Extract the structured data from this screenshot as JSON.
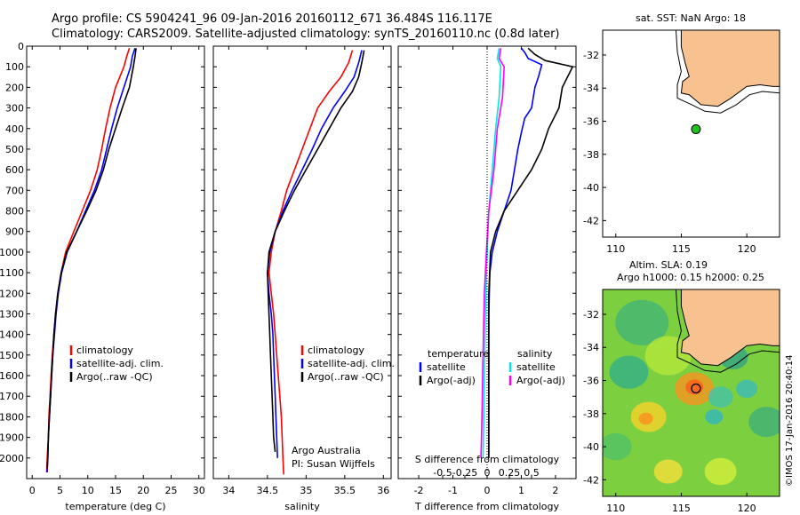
{
  "header": {
    "line1": "Argo profile: CS 5904241_96 09-Jan-2016 20160112_671 36.484S 116.117E",
    "line2": "Climatology: CARS2009. Satellite-adjusted climatology: synTS_20160110.nc (0.8d later)"
  },
  "credit": "©IMOS 17-Jan-2016 20:40:14",
  "colors": {
    "climatology": "#ff0000",
    "satellite": "#0000ff",
    "argo": "#000000",
    "sal_satellite": "#00e5ee",
    "sal_argo": "#ff00ff",
    "land": "#f7c28f"
  },
  "chart_data": [
    {
      "type": "line",
      "id": "temperature",
      "xlabel": "temperature (deg C)",
      "ylim": [
        2100,
        0
      ],
      "xlim": [
        -1,
        31
      ],
      "xticks": [
        0,
        5,
        10,
        15,
        20,
        25,
        30
      ],
      "yticks": [
        0,
        100,
        200,
        300,
        400,
        500,
        600,
        700,
        800,
        900,
        1000,
        1100,
        1200,
        1300,
        1400,
        1500,
        1600,
        1700,
        1800,
        1900,
        2000
      ],
      "legend": [
        "climatology",
        "satellite-adj. clim.",
        "Argo(..raw -QC)"
      ],
      "series": [
        {
          "name": "climatology",
          "color": "#ff0000",
          "points": [
            [
              17.5,
              10
            ],
            [
              17,
              50
            ],
            [
              16.5,
              100
            ],
            [
              15,
              200
            ],
            [
              14,
              300
            ],
            [
              13.2,
              400
            ],
            [
              12.5,
              500
            ],
            [
              11.7,
              600
            ],
            [
              10.5,
              700
            ],
            [
              9,
              800
            ],
            [
              7.5,
              900
            ],
            [
              6,
              1000
            ],
            [
              5.2,
              1100
            ],
            [
              4.6,
              1200
            ],
            [
              4.2,
              1300
            ],
            [
              3.9,
              1400
            ],
            [
              3.6,
              1500
            ],
            [
              3.4,
              1600
            ],
            [
              3.2,
              1700
            ],
            [
              3,
              1800
            ],
            [
              2.9,
              1900
            ],
            [
              2.7,
              2000
            ],
            [
              2.6,
              2070
            ]
          ]
        },
        {
          "name": "satellite-adj. clim.",
          "color": "#0000ff",
          "points": [
            [
              18.5,
              10
            ],
            [
              18,
              50
            ],
            [
              17.7,
              100
            ],
            [
              16.5,
              200
            ],
            [
              15.3,
              300
            ],
            [
              14.3,
              400
            ],
            [
              13.4,
              500
            ],
            [
              12.5,
              600
            ],
            [
              11.2,
              700
            ],
            [
              9.6,
              800
            ],
            [
              8,
              900
            ],
            [
              6.3,
              1000
            ],
            [
              5.3,
              1100
            ],
            [
              4.7,
              1200
            ],
            [
              4.3,
              1300
            ],
            [
              4,
              1400
            ],
            [
              3.7,
              1500
            ],
            [
              3.5,
              1600
            ],
            [
              3.3,
              1700
            ],
            [
              3.1,
              1800
            ],
            [
              2.9,
              1900
            ],
            [
              2.8,
              2000
            ],
            [
              2.7,
              2070
            ]
          ]
        },
        {
          "name": "Argo(..raw -QC)",
          "color": "#000000",
          "points": [
            [
              18.7,
              10
            ],
            [
              18.5,
              50
            ],
            [
              18.2,
              100
            ],
            [
              17.5,
              200
            ],
            [
              16.2,
              300
            ],
            [
              15,
              400
            ],
            [
              13.8,
              500
            ],
            [
              12.8,
              600
            ],
            [
              11.5,
              700
            ],
            [
              9.8,
              800
            ],
            [
              8,
              900
            ],
            [
              6.2,
              1000
            ],
            [
              5.2,
              1100
            ],
            [
              4.6,
              1200
            ],
            [
              4.2,
              1300
            ],
            [
              3.9,
              1400
            ],
            [
              3.7,
              1500
            ],
            [
              3.5,
              1600
            ],
            [
              3.3,
              1700
            ],
            [
              3.1,
              1800
            ],
            [
              2.9,
              1900
            ],
            [
              2.8,
              2000
            ],
            [
              2.7,
              2050
            ]
          ]
        }
      ]
    },
    {
      "type": "line",
      "id": "salinity",
      "xlabel": "salinity",
      "ylim": [
        2100,
        0
      ],
      "xlim": [
        33.8,
        36.1
      ],
      "xticks": [
        34,
        34.5,
        35,
        35.5,
        36
      ],
      "legend": [
        "climatology",
        "satellite-adj. clim.",
        "Argo(..raw -QC)"
      ],
      "annotation": [
        "Argo Australia",
        "PI: Susan Wijffels"
      ],
      "series": [
        {
          "name": "climatology",
          "color": "#ff0000",
          "points": [
            [
              35.6,
              20
            ],
            [
              35.55,
              80
            ],
            [
              35.45,
              150
            ],
            [
              35.3,
              220
            ],
            [
              35.15,
              300
            ],
            [
              35.05,
              400
            ],
            [
              34.95,
              500
            ],
            [
              34.85,
              600
            ],
            [
              34.75,
              700
            ],
            [
              34.68,
              800
            ],
            [
              34.6,
              900
            ],
            [
              34.55,
              1000
            ],
            [
              34.52,
              1100
            ],
            [
              34.55,
              1200
            ],
            [
              34.58,
              1300
            ],
            [
              34.6,
              1400
            ],
            [
              34.62,
              1500
            ],
            [
              34.64,
              1600
            ],
            [
              34.66,
              1700
            ],
            [
              34.68,
              1800
            ],
            [
              34.69,
              1900
            ],
            [
              34.7,
              2000
            ],
            [
              34.71,
              2080
            ]
          ]
        },
        {
          "name": "satellite-adj. clim.",
          "color": "#0000ff",
          "points": [
            [
              35.72,
              20
            ],
            [
              35.68,
              80
            ],
            [
              35.62,
              150
            ],
            [
              35.5,
              220
            ],
            [
              35.35,
              300
            ],
            [
              35.2,
              400
            ],
            [
              35.08,
              500
            ],
            [
              34.95,
              600
            ],
            [
              34.82,
              700
            ],
            [
              34.7,
              800
            ],
            [
              34.6,
              900
            ],
            [
              34.53,
              1000
            ],
            [
              34.5,
              1100
            ],
            [
              34.52,
              1200
            ],
            [
              34.55,
              1300
            ],
            [
              34.57,
              1400
            ],
            [
              34.58,
              1500
            ],
            [
              34.59,
              1600
            ],
            [
              34.6,
              1700
            ],
            [
              34.61,
              1800
            ],
            [
              34.62,
              1900
            ],
            [
              34.63,
              2000
            ]
          ]
        },
        {
          "name": "Argo(..raw -QC)",
          "color": "#000000",
          "points": [
            [
              35.75,
              20
            ],
            [
              35.72,
              80
            ],
            [
              35.68,
              150
            ],
            [
              35.6,
              220
            ],
            [
              35.45,
              300
            ],
            [
              35.3,
              400
            ],
            [
              35.15,
              500
            ],
            [
              35,
              600
            ],
            [
              34.85,
              700
            ],
            [
              34.72,
              800
            ],
            [
              34.6,
              900
            ],
            [
              34.52,
              1000
            ],
            [
              34.5,
              1100
            ],
            [
              34.51,
              1200
            ],
            [
              34.52,
              1300
            ],
            [
              34.53,
              1400
            ],
            [
              34.54,
              1500
            ],
            [
              34.55,
              1600
            ],
            [
              34.56,
              1700
            ],
            [
              34.57,
              1800
            ],
            [
              34.58,
              1900
            ],
            [
              34.6,
              1970
            ]
          ]
        }
      ]
    },
    {
      "type": "line",
      "id": "difference",
      "xlabel": "T difference from climatology",
      "x2label": "S difference from climatology",
      "ylim": [
        2100,
        0
      ],
      "xlim": [
        -2.6,
        2.6
      ],
      "xticks": [
        -2,
        -1,
        0,
        1,
        2
      ],
      "x2ticks": [
        {
          "value": -0.5,
          "label": "-0.5"
        },
        {
          "value": -0.25,
          "label": "-0.25"
        },
        {
          "value": 0,
          "label": "0"
        },
        {
          "value": 0.25,
          "label": "0.25"
        },
        {
          "value": 0.5,
          "label": "0.5"
        }
      ],
      "legend_temperature": {
        "title": "temperature",
        "items": [
          "satellite",
          "Argo(-adj)"
        ]
      },
      "legend_salinity": {
        "title": "salinity",
        "items": [
          "satellite",
          "Argo(-adj)"
        ]
      },
      "series": [
        {
          "name": "satellite",
          "group": "temperature",
          "color": "#0000ff",
          "points": [
            [
              1,
              10
            ],
            [
              1.1,
              30
            ],
            [
              1.2,
              60
            ],
            [
              1.6,
              90
            ],
            [
              1.5,
              150
            ],
            [
              1.4,
              200
            ],
            [
              1.3,
              300
            ],
            [
              1.1,
              350
            ],
            [
              1,
              420
            ],
            [
              0.9,
              500
            ],
            [
              0.8,
              600
            ],
            [
              0.7,
              700
            ],
            [
              0.6,
              750
            ],
            [
              0.5,
              800
            ],
            [
              0.3,
              900
            ],
            [
              0.15,
              1000
            ],
            [
              0.08,
              1100
            ],
            [
              0.05,
              1300
            ],
            [
              0.05,
              1600
            ],
            [
              0.05,
              1800
            ],
            [
              0.05,
              2000
            ]
          ]
        },
        {
          "name": "Argo(-adj)",
          "group": "temperature",
          "color": "#000000",
          "points": [
            [
              1.2,
              10
            ],
            [
              1.4,
              40
            ],
            [
              1.7,
              70
            ],
            [
              2.5,
              100
            ],
            [
              2.2,
              200
            ],
            [
              2.1,
              300
            ],
            [
              1.8,
              400
            ],
            [
              1.6,
              500
            ],
            [
              1.3,
              600
            ],
            [
              0.9,
              700
            ],
            [
              0.5,
              800
            ],
            [
              0.25,
              900
            ],
            [
              0.1,
              1000
            ],
            [
              0.05,
              1200
            ],
            [
              0.05,
              1500
            ],
            [
              0.05,
              1800
            ],
            [
              0.05,
              2000
            ]
          ]
        },
        {
          "name": "satellite",
          "group": "salinity",
          "color": "#00e5ee",
          "points": [
            [
              0.35,
              10
            ],
            [
              0.3,
              60
            ],
            [
              0.4,
              100
            ],
            [
              0.35,
              250
            ],
            [
              0.25,
              400
            ],
            [
              0.15,
              600
            ],
            [
              0.05,
              800
            ],
            [
              -0.02,
              1100
            ],
            [
              -0.05,
              1300
            ],
            [
              -0.08,
              1600
            ],
            [
              -0.1,
              1800
            ],
            [
              -0.12,
              2000
            ]
          ]
        },
        {
          "name": "Argo(-adj)",
          "group": "salinity",
          "color": "#ff00ff",
          "points": [
            [
              0.4,
              10
            ],
            [
              0.35,
              60
            ],
            [
              0.5,
              100
            ],
            [
              0.45,
              250
            ],
            [
              0.3,
              400
            ],
            [
              0.2,
              600
            ],
            [
              0.05,
              800
            ],
            [
              -0.02,
              1000
            ],
            [
              -0.08,
              1200
            ],
            [
              -0.12,
              1500
            ],
            [
              -0.15,
              1800
            ],
            [
              -0.18,
              2000
            ]
          ]
        }
      ]
    }
  ],
  "map_top": {
    "title": "sat. SST: NaN Argo: 18",
    "xticks": [
      110,
      115,
      120
    ],
    "yticks": [
      -32,
      -34,
      -36,
      -38,
      -40,
      -42
    ],
    "xlim": [
      109,
      122.5
    ],
    "ylim": [
      -43,
      -30.5
    ],
    "float": {
      "lon": 116.12,
      "lat": -36.48
    }
  },
  "map_bottom": {
    "title1": "Altim. SLA: 0.19",
    "title2": "Argo h1000: 0.15 h2000: 0.25",
    "xticks": [
      110,
      115,
      120
    ],
    "yticks": [
      -32,
      -34,
      -36,
      -38,
      -40,
      -42
    ],
    "xlim": [
      109,
      122.5
    ],
    "ylim": [
      -43,
      -30.5
    ],
    "float": {
      "lon": 116.12,
      "lat": -36.48
    }
  }
}
